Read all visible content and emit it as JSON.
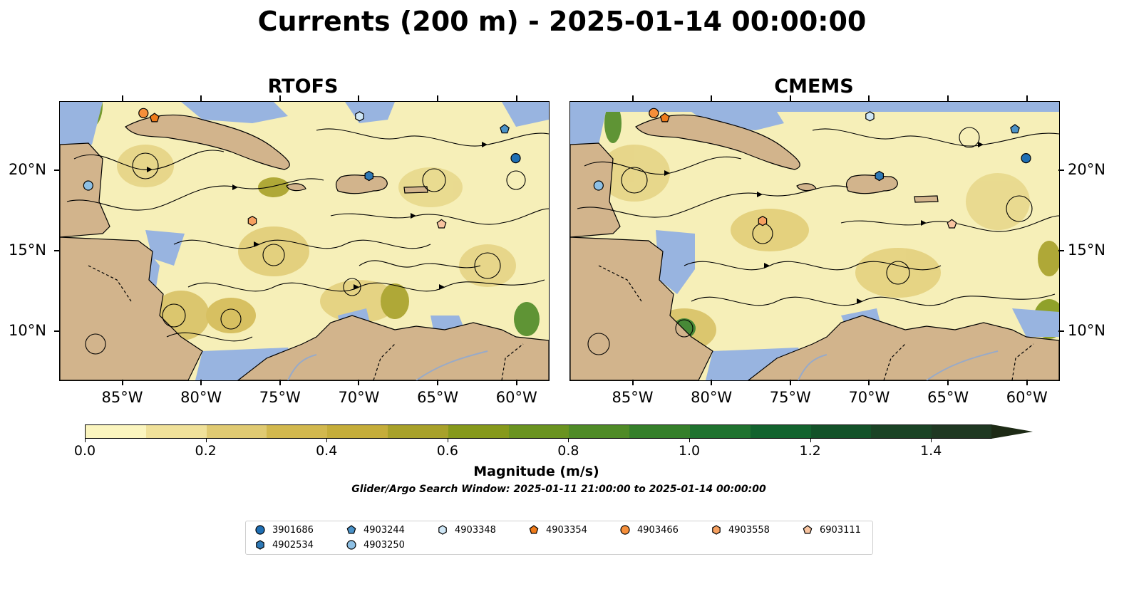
{
  "title": "Currents (200 m) - 2025-01-14 00:00:00",
  "panels": [
    {
      "name": "RTOFS"
    },
    {
      "name": "CMEMS"
    }
  ],
  "map_extent": {
    "lon": [
      -89,
      -58
    ],
    "lat": [
      7,
      24.3
    ]
  },
  "lat_ticks": [
    {
      "value": 20,
      "label": "20°N"
    },
    {
      "value": 15,
      "label": "15°N"
    },
    {
      "value": 10,
      "label": "10°N"
    }
  ],
  "lon_ticks": [
    {
      "value": -85,
      "label": "85°W"
    },
    {
      "value": -80,
      "label": "80°W"
    },
    {
      "value": -75,
      "label": "75°W"
    },
    {
      "value": -70,
      "label": "70°W"
    },
    {
      "value": -65,
      "label": "65°W"
    },
    {
      "value": -60,
      "label": "60°W"
    }
  ],
  "colorbar": {
    "label": "Magnitude (m/s)",
    "range": [
      0.0,
      1.5
    ],
    "extend": "max",
    "ticks": [
      "0.0",
      "0.2",
      "0.4",
      "0.6",
      "0.8",
      "1.0",
      "1.2",
      "1.4"
    ],
    "colors": [
      "#fbf5bf",
      "#f0e19a",
      "#e0ca72",
      "#d2b84e",
      "#c5ad3a",
      "#a8a12a",
      "#86991b",
      "#6a9320",
      "#4f8b27",
      "#357f2a",
      "#1f722f",
      "#12632e",
      "#135229",
      "#1a4325",
      "#1f3822"
    ]
  },
  "subtitle": "Glider/Argo Search Window: 2025-01-11 21:00:00 to 2025-01-14 00:00:00",
  "colors": {
    "land": "#d2b48c",
    "shallow_water": "#98b4e0",
    "rivers": "#98aac8"
  },
  "platforms": [
    {
      "id": "3901686",
      "marker": "circle",
      "color": "#1f6fb4",
      "lon": -60.1,
      "lat": 20.8
    },
    {
      "id": "4902534",
      "marker": "hexagon",
      "color": "#2e79b6",
      "lon": -69.4,
      "lat": 19.7
    },
    {
      "id": "4903244",
      "marker": "pentagon",
      "color": "#4a92c8",
      "lon": -60.8,
      "lat": 22.6
    },
    {
      "id": "4903250",
      "marker": "circle",
      "color": "#8ec0e4",
      "lon": -87.2,
      "lat": 19.1
    },
    {
      "id": "4903348",
      "marker": "hexagon",
      "color": "#cfe7f6",
      "lon": -70.0,
      "lat": 23.4
    },
    {
      "id": "4903354",
      "marker": "pentagon",
      "color": "#ef7b1a",
      "lon": -83.0,
      "lat": 23.3
    },
    {
      "id": "4903466",
      "marker": "circle",
      "color": "#f68f3a",
      "lon": -83.7,
      "lat": 23.6
    },
    {
      "id": "4903558",
      "marker": "hexagon",
      "color": "#f6a060",
      "lon": -76.8,
      "lat": 16.9
    },
    {
      "id": "6903111",
      "marker": "pentagon",
      "color": "#f8c4a0",
      "lon": -64.8,
      "lat": 16.7
    }
  ]
}
